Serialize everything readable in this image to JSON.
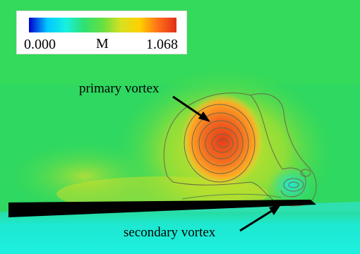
{
  "legend": {
    "min_label": "0.000",
    "variable_label": "M",
    "max_label": "1.068",
    "colormap": [
      "#0000d0",
      "#00c8ff",
      "#18f0e0",
      "#30e070",
      "#66e040",
      "#d8e020",
      "#ffd000",
      "#ff7018",
      "#e03018"
    ]
  },
  "annotations": {
    "primary": "primary vortex",
    "secondary": "secondary vortex"
  },
  "colors": {
    "field_base": "#2fd860",
    "plate": "#000000",
    "lower_region": "#20e8c8",
    "vortex_core": "#f05020",
    "contour_line": "#6a6a4a"
  }
}
